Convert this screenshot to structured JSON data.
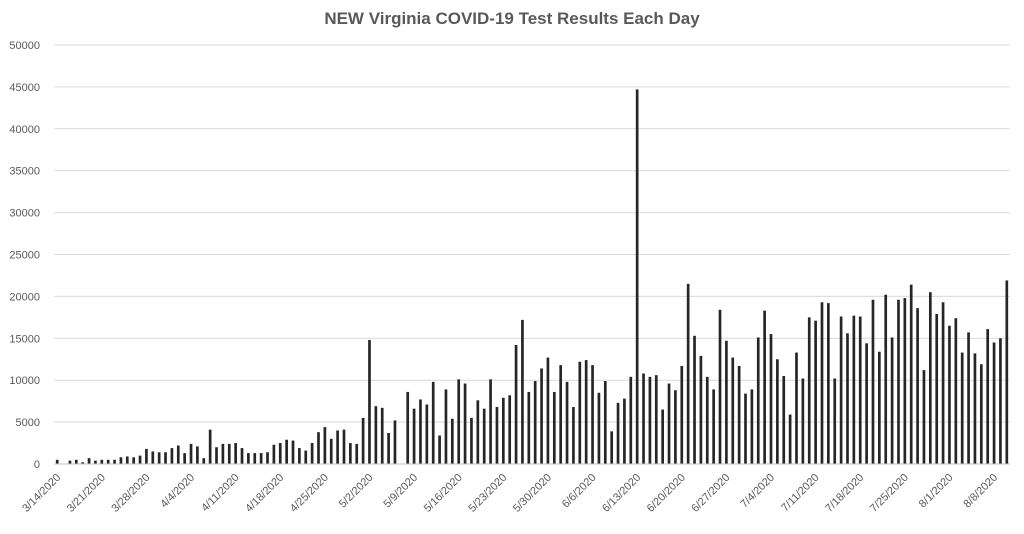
{
  "chart_data": {
    "type": "bar",
    "title": "NEW Virginia COVID-19 Test Results Each Day",
    "xlabel": "",
    "ylabel": "",
    "ylim": [
      0,
      50000
    ],
    "yticks": [
      "0",
      "5000",
      "10000",
      "15000",
      "20000",
      "25000",
      "30000",
      "35000",
      "40000",
      "45000",
      "50000"
    ],
    "xticks": [
      "3/14/2020",
      "3/21/2020",
      "3/28/2020",
      "4/4/2020",
      "4/11/2020",
      "4/18/2020",
      "4/25/2020",
      "5/2/2020",
      "5/9/2020",
      "5/16/2020",
      "5/23/2020",
      "5/30/2020",
      "6/6/2020",
      "6/13/2020",
      "6/20/2020",
      "6/27/2020",
      "7/4/2020",
      "7/11/2020",
      "7/18/2020",
      "7/25/2020",
      "8/1/2020",
      "8/8/2020"
    ],
    "start_label": "3/14/2020",
    "grid": true,
    "legend": "none",
    "bar_color": "#262626",
    "values": [
      500,
      0,
      400,
      500,
      200,
      700,
      400,
      500,
      500,
      500,
      800,
      900,
      800,
      1000,
      1800,
      1500,
      1400,
      1400,
      1900,
      2200,
      1300,
      2400,
      2100,
      700,
      4100,
      2000,
      2400,
      2400,
      2500,
      1900,
      1300,
      1300,
      1300,
      1400,
      2300,
      2500,
      2900,
      2800,
      1900,
      1600,
      2500,
      3800,
      4400,
      3000,
      4000,
      4100,
      2500,
      2400,
      5500,
      14800,
      6900,
      6700,
      3700,
      5200,
      0,
      8600,
      6600,
      7700,
      7100,
      9800,
      3400,
      8900,
      5400,
      10100,
      9600,
      5500,
      7600,
      6600,
      10100,
      6800,
      7900,
      8200,
      14200,
      17200,
      8600,
      9900,
      11400,
      12700,
      8600,
      11800,
      9800,
      6800,
      12200,
      12400,
      11800,
      8500,
      9900,
      3900,
      7300,
      7800,
      10400,
      44700,
      10800,
      10400,
      10600,
      6500,
      9600,
      8800,
      11700,
      21500,
      15300,
      12900,
      10400,
      8900,
      18400,
      14700,
      12700,
      11700,
      8400,
      8900,
      15100,
      18300,
      15500,
      12500,
      10500,
      5900,
      13300,
      10200,
      17500,
      17100,
      19300,
      19200,
      10200,
      17600,
      15600,
      17700,
      17600,
      14400,
      19600,
      13400,
      20200,
      15100,
      19600,
      19800,
      21400,
      18600,
      11200,
      20500,
      17900,
      19300,
      16500,
      17400,
      13300,
      15700,
      13200,
      11900,
      16100,
      14500,
      15000,
      21900
    ]
  }
}
